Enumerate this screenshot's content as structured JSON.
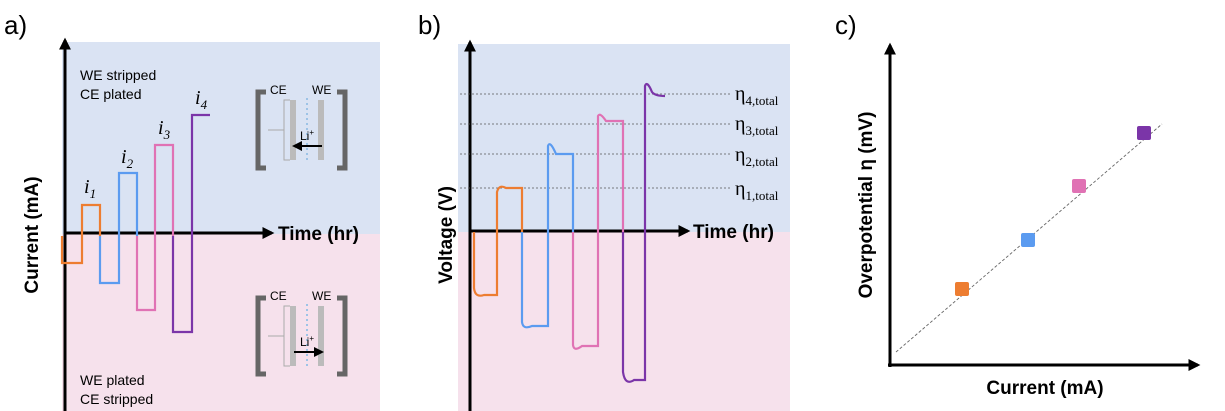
{
  "panels": [
    {
      "label": "a)",
      "y_axis": "Current (mA)",
      "x_axis": "Time (hr)",
      "top_region": [
        "WE stripped",
        "CE plated"
      ],
      "bottom_region": [
        "WE plated",
        "CE stripped"
      ],
      "currents": [
        {
          "symbol": "i",
          "subscript": "1"
        },
        {
          "symbol": "i",
          "subscript": "2"
        },
        {
          "symbol": "i",
          "subscript": "3"
        },
        {
          "symbol": "i",
          "subscript": "4"
        }
      ],
      "cell": {
        "left": "CE",
        "right": "WE",
        "ion": "Li",
        "charge": "+"
      }
    },
    {
      "label": "b)",
      "y_axis": "Voltage (V)",
      "x_axis": "Time (hr)",
      "overpotentials": [
        {
          "symbol": "η",
          "subscript": "4,total"
        },
        {
          "symbol": "η",
          "subscript": "3,total"
        },
        {
          "symbol": "η",
          "subscript": "2,total"
        },
        {
          "symbol": "η",
          "subscript": "1,total"
        }
      ]
    },
    {
      "label": "c)",
      "y_axis": "Overpotential η (mV)",
      "x_axis": "Current (mA)"
    }
  ]
}
